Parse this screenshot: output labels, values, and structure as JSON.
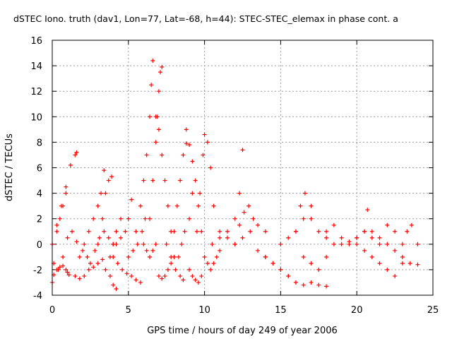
{
  "chart_data": {
    "type": "scatter",
    "title": "dSTEC Iono. truth (dav1, Lon=77, Lat=-68, h=44): STEC-STEC_elemax in phase cont. a",
    "xlabel": "GPS time / hours of day 249 of year 2006",
    "ylabel": "dSTEC  / TECUs",
    "xlim": [
      0,
      25
    ],
    "ylim": [
      -4,
      16
    ],
    "x_ticks": [
      0,
      5,
      10,
      15,
      20,
      25
    ],
    "y_ticks": [
      -4,
      -2,
      0,
      2,
      4,
      6,
      8,
      10,
      12,
      14,
      16
    ],
    "grid": true,
    "marker": "+",
    "series": [
      {
        "color": "#ff0000",
        "tracks": [
          {
            "x": [
              0.0,
              0.1,
              0.3,
              0.5,
              0.7,
              0.9,
              1.0,
              1.1
            ],
            "y": [
              -3.0,
              -2.4,
              -2.0,
              -1.8,
              -1.7,
              -2.0,
              -2.2,
              -2.4
            ]
          },
          {
            "x": [
              0.0,
              0.3,
              0.6,
              0.9,
              1.2,
              1.5,
              1.6
            ],
            "y": [
              0.0,
              1.5,
              3.0,
              4.5,
              6.2,
              7.0,
              7.2
            ]
          },
          {
            "x": [
              0.1,
              0.4,
              0.7,
              1.0,
              1.3,
              1.6,
              2.0,
              2.3
            ],
            "y": [
              -1.5,
              -2.0,
              -1.0,
              0.5,
              1.0,
              0.2,
              -0.5,
              -1.0
            ]
          },
          {
            "x": [
              0.3,
              0.5,
              0.7,
              0.9
            ],
            "y": [
              1.0,
              2.0,
              3.0,
              4.0
            ]
          },
          {
            "x": [
              1.5,
              1.8,
              2.1,
              2.4,
              2.7,
              3.0,
              3.3
            ],
            "y": [
              -2.5,
              -2.7,
              -2.5,
              -2.0,
              -1.8,
              -1.5,
              -1.2
            ]
          },
          {
            "x": [
              1.8,
              2.1,
              2.4,
              2.7,
              3.0,
              3.2,
              3.4
            ],
            "y": [
              -1.0,
              0.0,
              1.0,
              2.0,
              3.0,
              4.0,
              5.8
            ]
          },
          {
            "x": [
              2.5,
              2.8,
              3.1,
              3.4,
              3.7,
              4.0
            ],
            "y": [
              -1.5,
              -0.5,
              0.5,
              1.0,
              0.5,
              0.0
            ]
          },
          {
            "x": [
              3.0,
              3.3,
              3.5,
              3.7,
              3.9
            ],
            "y": [
              0.0,
              2.0,
              4.0,
              5.0,
              5.3
            ]
          },
          {
            "x": [
              3.5,
              3.8,
              4.0,
              4.2,
              4.5
            ],
            "y": [
              -2.0,
              -1.0,
              0.0,
              1.0,
              2.0
            ]
          },
          {
            "x": [
              3.8,
              4.0,
              4.2
            ],
            "y": [
              -2.5,
              -3.2,
              -3.5
            ]
          },
          {
            "x": [
              4.0,
              4.3,
              4.6,
              4.9,
              5.2,
              5.5,
              5.8
            ],
            "y": [
              -1.0,
              -1.5,
              -2.0,
              -2.3,
              -2.5,
              -2.8,
              -3.0
            ]
          },
          {
            "x": [
              4.2,
              4.5,
              4.8,
              5.0,
              5.2
            ],
            "y": [
              0.0,
              0.5,
              1.0,
              2.0,
              3.5
            ]
          },
          {
            "x": [
              5.0,
              5.3,
              5.6,
              5.9,
              6.1
            ],
            "y": [
              -1.0,
              -0.5,
              0.0,
              1.0,
              2.0
            ]
          },
          {
            "x": [
              5.5,
              5.8,
              6.0,
              6.2,
              6.4,
              6.5,
              6.6
            ],
            "y": [
              1.0,
              3.0,
              5.0,
              7.0,
              10.0,
              12.5,
              14.4
            ]
          },
          {
            "x": [
              6.0,
              6.2,
              6.4,
              6.6,
              6.8
            ],
            "y": [
              0.0,
              -0.5,
              -1.0,
              -0.5,
              0.0
            ]
          },
          {
            "x": [
              6.4,
              6.6,
              6.8,
              6.9,
              7.0,
              7.1,
              7.2
            ],
            "y": [
              2.0,
              5.0,
              8.0,
              10.0,
              12.0,
              13.5,
              13.9
            ]
          },
          {
            "x": [
              6.8,
              7.0,
              7.2,
              7.4,
              7.6,
              7.8,
              8.0
            ],
            "y": [
              10.0,
              9.0,
              7.0,
              5.0,
              3.0,
              1.0,
              -1.0
            ]
          },
          {
            "x": [
              7.0,
              7.2,
              7.4,
              7.6,
              7.8,
              8.0
            ],
            "y": [
              -2.5,
              -2.7,
              -2.5,
              -2.0,
              -1.5,
              -1.0
            ]
          },
          {
            "x": [
              7.5,
              7.8,
              8.1,
              8.4,
              8.6
            ],
            "y": [
              0.0,
              -1.0,
              -2.0,
              -2.5,
              -2.8
            ]
          },
          {
            "x": [
              8.0,
              8.2,
              8.4,
              8.6,
              8.8
            ],
            "y": [
              1.0,
              3.0,
              5.0,
              7.0,
              9.0
            ]
          },
          {
            "x": [
              8.3,
              8.5,
              8.7,
              9.0,
              9.2
            ],
            "y": [
              -1.0,
              0.0,
              1.0,
              2.0,
              4.0
            ]
          },
          {
            "x": [
              8.8,
              9.0,
              9.2,
              9.4,
              9.6,
              9.8
            ],
            "y": [
              7.9,
              7.8,
              6.5,
              5.0,
              3.0,
              1.0
            ]
          },
          {
            "x": [
              9.0,
              9.2,
              9.4,
              9.6,
              9.8
            ],
            "y": [
              -2.0,
              -2.5,
              -2.8,
              -3.0,
              -2.5
            ]
          },
          {
            "x": [
              9.5,
              9.7,
              9.9,
              10.0,
              10.2,
              10.4,
              10.6
            ],
            "y": [
              1.0,
              4.0,
              7.0,
              8.6,
              8.0,
              6.0,
              3.0
            ]
          },
          {
            "x": [
              10.0,
              10.2,
              10.4,
              10.6,
              10.8,
              11.0
            ],
            "y": [
              -1.0,
              -1.5,
              -2.0,
              -1.5,
              -1.0,
              -0.5
            ]
          },
          {
            "x": [
              10.5,
              11.0,
              11.5,
              12.0,
              12.3,
              12.5
            ],
            "y": [
              0.0,
              0.5,
              1.0,
              2.0,
              4.0,
              7.4
            ]
          },
          {
            "x": [
              11.0,
              11.5,
              12.0,
              12.5,
              13.0,
              13.5,
              14.0
            ],
            "y": [
              1.0,
              0.5,
              0.0,
              0.5,
              1.0,
              1.5,
              1.0
            ]
          },
          {
            "x": [
              12.0,
              12.3,
              12.6,
              12.9,
              13.2
            ],
            "y": [
              0.0,
              1.5,
              2.5,
              3.0,
              2.0
            ]
          },
          {
            "x": [
              13.5,
              14.0,
              14.5,
              15.0,
              15.5,
              16.0
            ],
            "y": [
              -0.5,
              -1.0,
              -1.5,
              -2.0,
              -2.5,
              -3.0
            ]
          },
          {
            "x": [
              14.0,
              14.5,
              15.0,
              15.5,
              16.0,
              16.5,
              17.0,
              17.5,
              18.0
            ],
            "y": [
              -1.0,
              -1.5,
              -2.0,
              -2.5,
              -3.0,
              -3.2,
              -3.0,
              -3.2,
              -3.3
            ]
          },
          {
            "x": [
              15.0,
              15.5,
              16.0,
              16.5,
              17.0
            ],
            "y": [
              0.0,
              0.5,
              1.0,
              2.0,
              3.0
            ]
          },
          {
            "x": [
              16.0,
              16.3,
              16.6,
              17.0,
              17.5,
              18.0
            ],
            "y": [
              1.0,
              3.0,
              4.0,
              2.0,
              1.0,
              0.5
            ]
          },
          {
            "x": [
              16.5,
              17.0,
              17.5,
              18.0,
              18.5
            ],
            "y": [
              -1.0,
              -1.5,
              -2.0,
              -1.0,
              0.0
            ]
          },
          {
            "x": [
              18.0,
              18.5,
              19.0,
              19.5,
              20.0
            ],
            "y": [
              1.0,
              1.5,
              0.5,
              0.0,
              0.5
            ]
          },
          {
            "x": [
              19.0,
              19.5,
              20.0,
              20.5,
              21.0,
              21.5
            ],
            "y": [
              0.0,
              0.2,
              0.5,
              1.0,
              0.5,
              0.0
            ]
          },
          {
            "x": [
              20.0,
              20.5,
              21.0,
              21.5,
              22.0,
              22.5,
              23.0
            ],
            "y": [
              0.0,
              -0.5,
              -1.0,
              -1.5,
              -2.0,
              -2.5,
              -1.5
            ]
          },
          {
            "x": [
              20.5,
              20.7,
              21.0,
              21.5,
              22.0,
              22.5
            ],
            "y": [
              1.0,
              2.7,
              1.0,
              0.5,
              1.5,
              1.0
            ]
          },
          {
            "x": [
              22.0,
              22.5,
              23.0,
              23.5,
              24.0
            ],
            "y": [
              0.0,
              -0.5,
              -1.0,
              -1.5,
              -1.6
            ]
          },
          {
            "x": [
              23.0,
              23.3,
              23.6,
              24.0
            ],
            "y": [
              0.0,
              1.0,
              1.5,
              0.0
            ]
          }
        ]
      }
    ]
  }
}
